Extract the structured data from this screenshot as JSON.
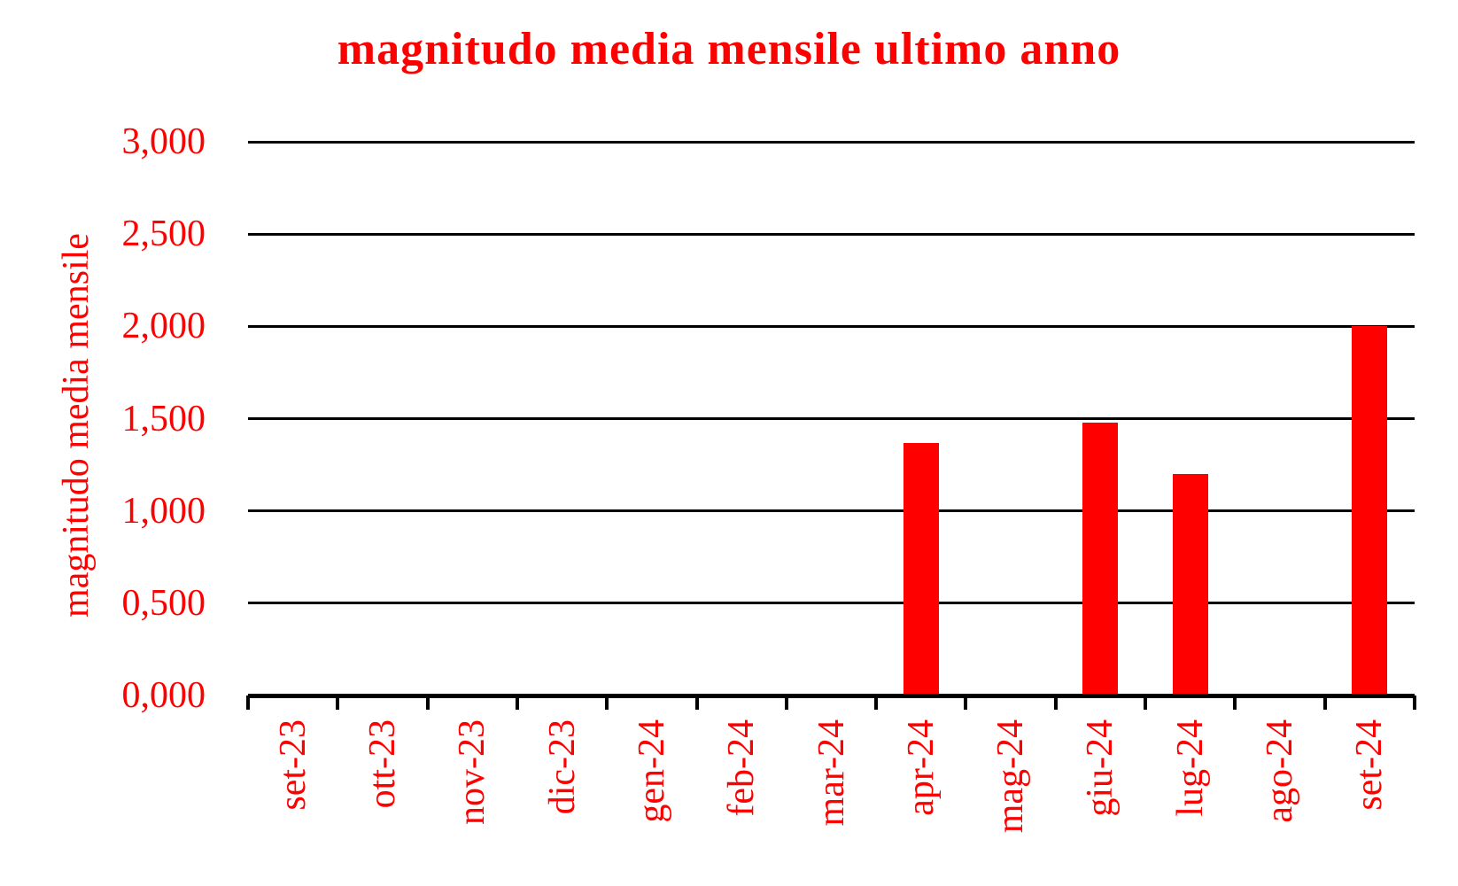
{
  "chart_data": {
    "type": "bar",
    "title": "magnitudo media mensile ultimo anno",
    "ylabel": "magnitudo media mensile",
    "xlabel": "",
    "categories": [
      "set-23",
      "ott-23",
      "nov-23",
      "dic-23",
      "gen-24",
      "feb-24",
      "mar-24",
      "apr-24",
      "mag-24",
      "giu-24",
      "lug-24",
      "ago-24",
      "set-24"
    ],
    "values": [
      0,
      0,
      0,
      0,
      0,
      0,
      0,
      1.37,
      0,
      1.48,
      1.2,
      0,
      2.0
    ],
    "ylim": [
      0,
      3
    ],
    "ytick_values": [
      0,
      0.5,
      1.0,
      1.5,
      2.0,
      2.5,
      3.0
    ],
    "ytick_labels": [
      "0,000",
      "0,500",
      "1,000",
      "1,500",
      "2,000",
      "2,500",
      "3,000"
    ],
    "grid": "horizontal",
    "legend": "none",
    "bar_color": "#ff0000",
    "text_color": "#ff0000",
    "grid_color": "#000000",
    "background_color": "#ffffff",
    "decimal_style": "comma"
  }
}
